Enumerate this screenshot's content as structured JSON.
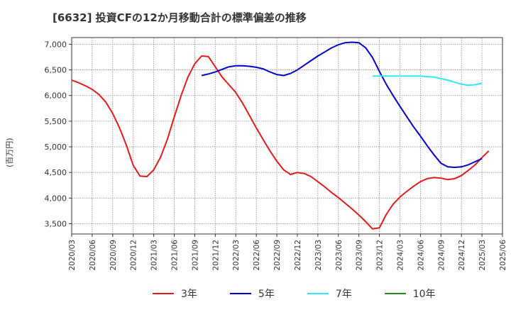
{
  "title": "[6632]  投資CFの12か月移動合計の標準偏差の推移",
  "chart_data": {
    "type": "line",
    "ylabel": "(百万円)",
    "ylim": [
      3300,
      7130
    ],
    "yticks": [
      3500,
      4000,
      4500,
      5000,
      5500,
      6000,
      6500,
      7000
    ],
    "ytick_labels": [
      "3,500",
      "4,000",
      "4,500",
      "5,000",
      "5,500",
      "6,000",
      "6,500",
      "7,000"
    ],
    "xlim": [
      "2020-03",
      "2025-06"
    ],
    "xtick_labels": [
      "2020/03",
      "2020/06",
      "2020/09",
      "2020/12",
      "2021/03",
      "2021/06",
      "2021/09",
      "2021/12",
      "2022/03",
      "2022/06",
      "2022/09",
      "2022/12",
      "2023/03",
      "2023/06",
      "2023/09",
      "2023/12",
      "2024/03",
      "2024/06",
      "2024/09",
      "2024/12",
      "2025/03",
      "2025/06"
    ],
    "grid": true,
    "legend_position": "bottom",
    "series": [
      {
        "name": "3年",
        "color": "#e31a1c",
        "start": "2020-03",
        "values": [
          6300,
          6250,
          6190,
          6120,
          6020,
          5870,
          5650,
          5370,
          5030,
          4640,
          4430,
          4420,
          4550,
          4800,
          5150,
          5580,
          6000,
          6360,
          6620,
          6770,
          6760,
          6560,
          6360,
          6210,
          6060,
          5850,
          5610,
          5370,
          5140,
          4920,
          4720,
          4550,
          4460,
          4500,
          4480,
          4420,
          4320,
          4220,
          4110,
          4010,
          3900,
          3790,
          3670,
          3540,
          3400,
          3420,
          3680,
          3880,
          4020,
          4130,
          4230,
          4320,
          4380,
          4400,
          4390,
          4360,
          4380,
          4440,
          4540,
          4650,
          4790,
          4920
        ]
      },
      {
        "name": "5年",
        "color": "#0000cc",
        "start": "2021-10",
        "values": [
          6390,
          6420,
          6460,
          6510,
          6560,
          6580,
          6580,
          6570,
          6550,
          6520,
          6460,
          6410,
          6390,
          6430,
          6500,
          6590,
          6680,
          6770,
          6850,
          6930,
          6990,
          7030,
          7040,
          7030,
          6930,
          6740,
          6470,
          6220,
          6000,
          5790,
          5590,
          5390,
          5210,
          5020,
          4840,
          4680,
          4610,
          4600,
          4610,
          4650,
          4710,
          4770
        ]
      },
      {
        "name": "7年",
        "color": "#33e6ff",
        "start": "2023-11",
        "values": [
          6380,
          6380,
          6380,
          6380,
          6380,
          6380,
          6380,
          6380,
          6370,
          6360,
          6330,
          6300,
          6260,
          6220,
          6200,
          6210,
          6240
        ]
      },
      {
        "name": "10年",
        "color": "#228b22",
        "start": "2025-03",
        "values": []
      }
    ]
  }
}
